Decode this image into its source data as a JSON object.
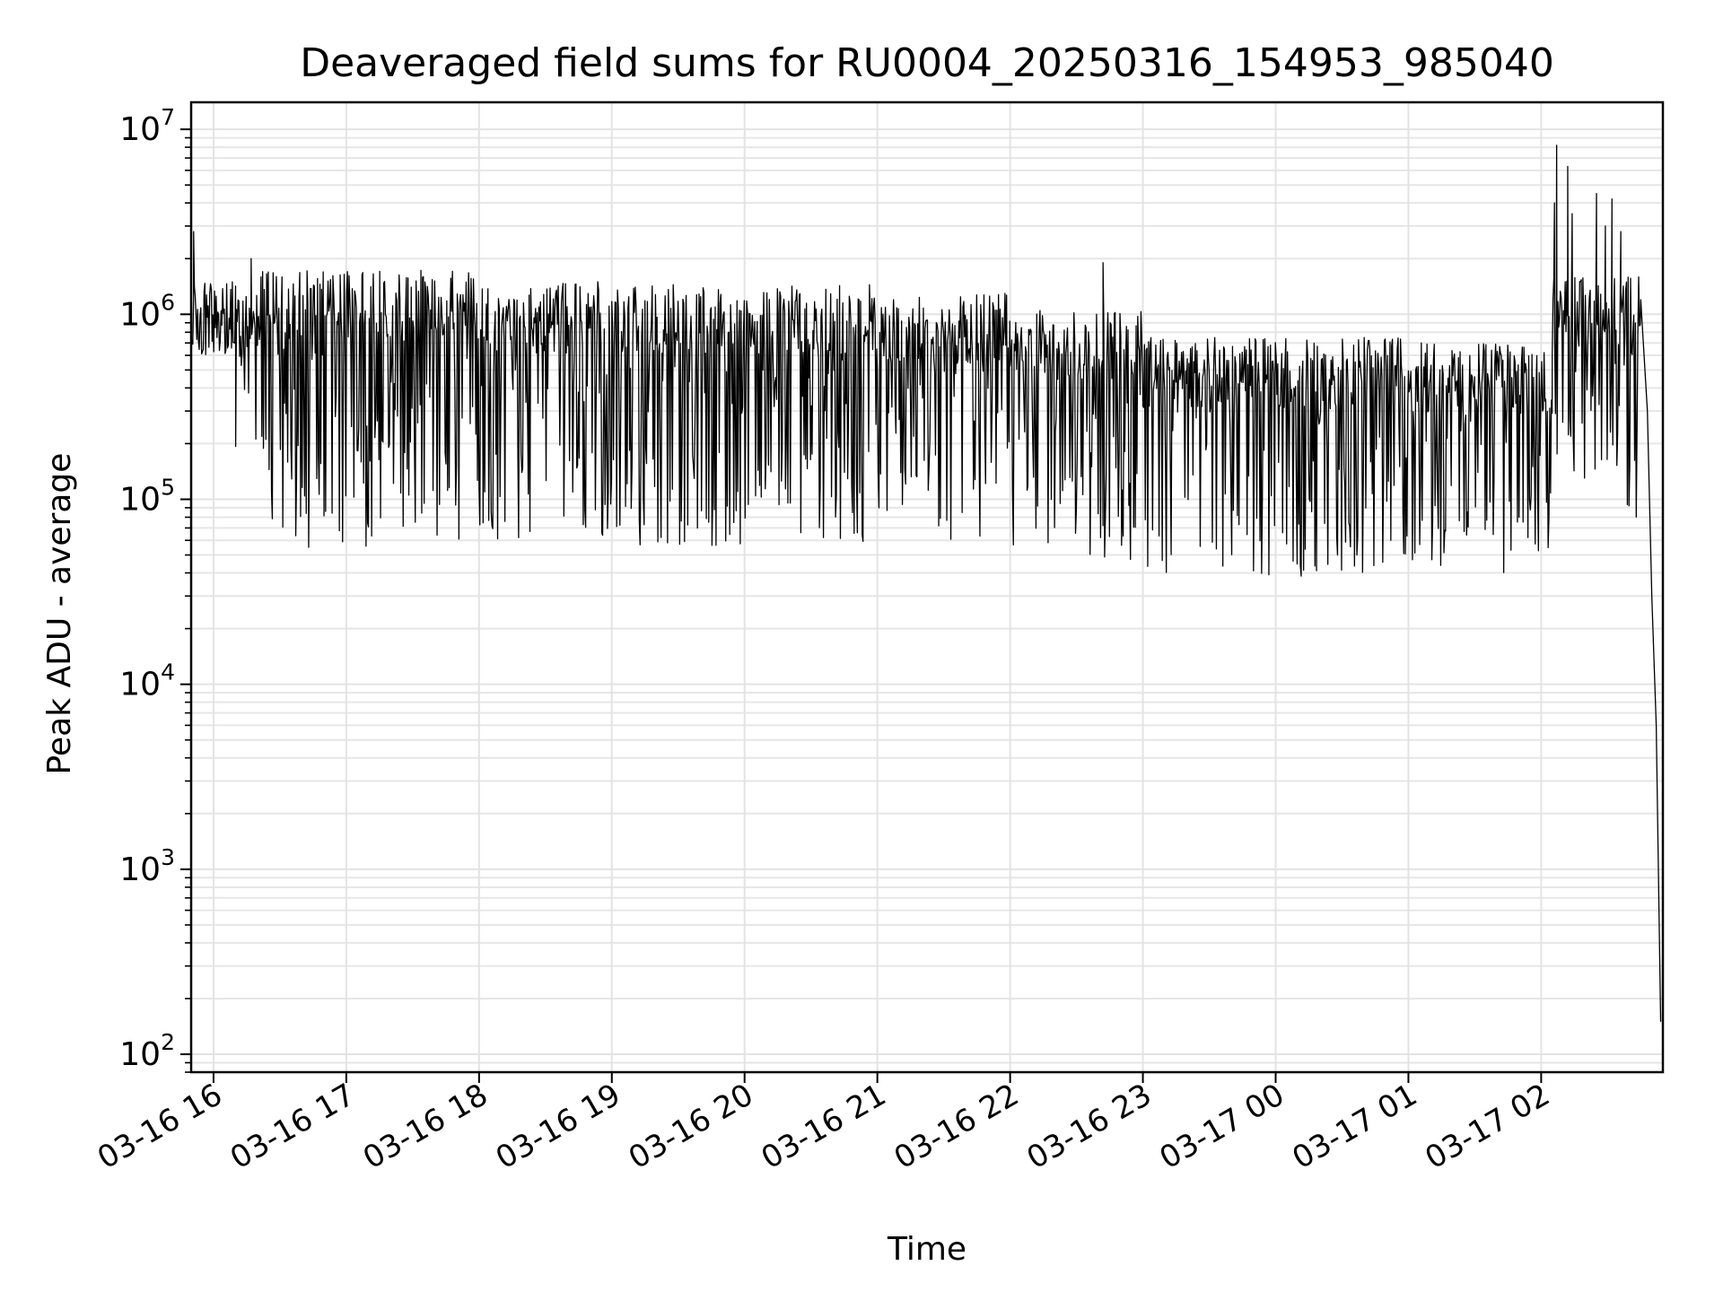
{
  "chart_data": {
    "type": "line",
    "title": "Deaveraged field sums for RU0004_20250316_154953_985040",
    "xlabel": "Time",
    "ylabel": "Peak ADU - average",
    "yscale": "log",
    "ylim": [
      80,
      14000000
    ],
    "xlim": [
      "2025-03-16 15:49:53",
      "2025-03-17 02:55:00"
    ],
    "grid": true,
    "x_ticks": [
      {
        "time": "2025-03-16 16:00",
        "label": "03-16 16"
      },
      {
        "time": "2025-03-16 17:00",
        "label": "03-16 17"
      },
      {
        "time": "2025-03-16 18:00",
        "label": "03-16 18"
      },
      {
        "time": "2025-03-16 19:00",
        "label": "03-16 19"
      },
      {
        "time": "2025-03-16 20:00",
        "label": "03-16 20"
      },
      {
        "time": "2025-03-16 21:00",
        "label": "03-16 21"
      },
      {
        "time": "2025-03-16 22:00",
        "label": "03-16 22"
      },
      {
        "time": "2025-03-16 23:00",
        "label": "03-16 23"
      },
      {
        "time": "2025-03-17 00:00",
        "label": "03-17 00"
      },
      {
        "time": "2025-03-17 01:00",
        "label": "03-17 01"
      },
      {
        "time": "2025-03-17 02:00",
        "label": "03-17 02"
      }
    ],
    "y_ticks": [
      {
        "value": 100,
        "base": "10",
        "exp": "2"
      },
      {
        "value": 1000,
        "base": "10",
        "exp": "3"
      },
      {
        "value": 10000,
        "base": "10",
        "exp": "4"
      },
      {
        "value": 100000,
        "base": "10",
        "exp": "5"
      },
      {
        "value": 1000000,
        "base": "10",
        "exp": "6"
      },
      {
        "value": 10000000,
        "base": "10",
        "exp": "7"
      }
    ],
    "series": [
      {
        "color": "#000000",
        "segments": [
          {
            "from": "2025-03-16 15:49:53",
            "to": "2025-03-16 16:10",
            "upper": 1500000,
            "lower": 700000,
            "dip_lower": 600000
          },
          {
            "from": "2025-03-16 16:10",
            "to": "2025-03-16 16:20",
            "upper": 1300000,
            "lower": 500000,
            "dip_lower": 150000
          },
          {
            "from": "2025-03-16 16:20",
            "to": "2025-03-16 18:00",
            "upper": 1750000,
            "lower": 200000,
            "dip_lower": 55000
          },
          {
            "from": "2025-03-16 18:00",
            "to": "2025-03-16 19:00",
            "upper": 1500000,
            "lower": 200000,
            "dip_lower": 60000
          },
          {
            "from": "2025-03-16 19:00",
            "to": "2025-03-16 21:00",
            "upper": 1450000,
            "lower": 180000,
            "dip_lower": 55000
          },
          {
            "from": "2025-03-16 21:00",
            "to": "2025-03-16 22:00",
            "upper": 1300000,
            "lower": 170000,
            "dip_lower": 60000
          },
          {
            "from": "2025-03-16 22:00",
            "to": "2025-03-16 23:00",
            "upper": 1050000,
            "lower": 150000,
            "dip_lower": 45000
          },
          {
            "from": "2025-03-16 23:00",
            "to": "2025-03-17 01:00",
            "upper": 750000,
            "lower": 120000,
            "dip_lower": 38000
          },
          {
            "from": "2025-03-17 01:00",
            "to": "2025-03-17 02:05",
            "upper": 700000,
            "lower": 130000,
            "dip_lower": 40000
          },
          {
            "from": "2025-03-17 02:05",
            "to": "2025-03-17 02:45",
            "upper": 1600000,
            "lower": 350000,
            "dip_lower": 80000
          }
        ],
        "spikes": [
          {
            "time": "2025-03-16 15:51",
            "value": 2800000
          },
          {
            "time": "2025-03-16 16:17",
            "value": 2000000
          },
          {
            "time": "2025-03-16 22:42",
            "value": 1900000
          },
          {
            "time": "2025-03-17 02:06",
            "value": 4000000
          },
          {
            "time": "2025-03-17 02:07",
            "value": 8200000
          },
          {
            "time": "2025-03-17 02:12",
            "value": 6300000
          },
          {
            "time": "2025-03-17 02:14",
            "value": 3500000
          },
          {
            "time": "2025-03-17 02:25",
            "value": 4500000
          },
          {
            "time": "2025-03-17 02:29",
            "value": 3000000
          },
          {
            "time": "2025-03-17 02:32",
            "value": 4200000
          },
          {
            "time": "2025-03-17 02:36",
            "value": 2800000
          }
        ],
        "tail": [
          {
            "time": "2025-03-17 02:45",
            "value": 1200000
          },
          {
            "time": "2025-03-17 02:48",
            "value": 300000
          },
          {
            "time": "2025-03-17 02:50",
            "value": 30000
          },
          {
            "time": "2025-03-17 02:52",
            "value": 6000
          },
          {
            "time": "2025-03-17 02:54",
            "value": 150
          }
        ]
      }
    ]
  }
}
